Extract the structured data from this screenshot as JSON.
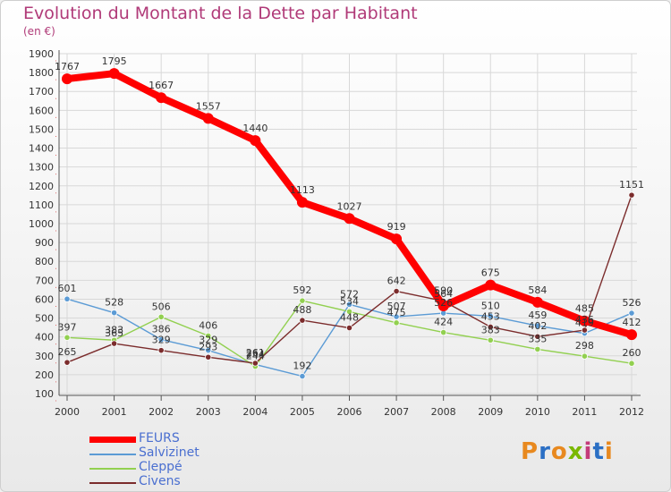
{
  "header": {
    "title": "Evolution du Montant de la Dette par Habitant",
    "unit": "(en €)"
  },
  "logo": {
    "text": "Proxiti"
  },
  "chart_data": {
    "type": "line",
    "title": "Evolution du Montant de la Dette par Habitant",
    "ylabel": "(en €)",
    "ylim": [
      100,
      1900
    ],
    "ytick_step": 100,
    "grid": true,
    "legend_position": "bottom-left",
    "x": [
      "2000",
      "2001",
      "2002",
      "2003",
      "2004",
      "2005",
      "2006",
      "2007",
      "2008",
      "2009",
      "2010",
      "2011",
      "2012"
    ],
    "series": [
      {
        "name": "FEURS",
        "color": "#ff0000",
        "values": [
          1767,
          1795,
          1667,
          1557,
          1440,
          1113,
          1027,
          919,
          564,
          675,
          584,
          485,
          412
        ]
      },
      {
        "name": "Salvizinet",
        "color": "#5b9bd5",
        "values": [
          601,
          528,
          386,
          329,
          254,
          192,
          572,
          507,
          526,
          510,
          459,
          419,
          526
        ]
      },
      {
        "name": "Cleppé",
        "color": "#92d050",
        "values": [
          397,
          383,
          506,
          406,
          244,
          592,
          534,
          475,
          424,
          383,
          335,
          298,
          260
        ]
      },
      {
        "name": "Civens",
        "color": "#7b2c2c",
        "values": [
          265,
          365,
          329,
          293,
          261,
          488,
          448,
          642,
          590,
          453,
          402,
          436,
          1151
        ]
      }
    ]
  }
}
